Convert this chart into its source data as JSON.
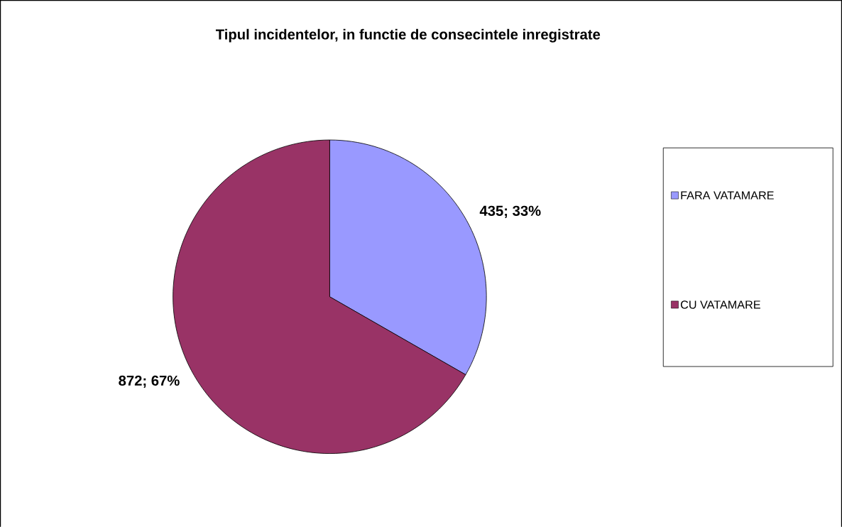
{
  "chart_data": {
    "type": "pie",
    "title": "Tipul incidentelor, in functie de consecintele inregistrate",
    "categories": [
      "FARA VATAMARE",
      "CU VATAMARE"
    ],
    "values": [
      435,
      872
    ],
    "colors": [
      "#9999ff",
      "#993366"
    ],
    "value_labels": [
      "435; 33%",
      "872; 67%"
    ],
    "legend": "right"
  }
}
